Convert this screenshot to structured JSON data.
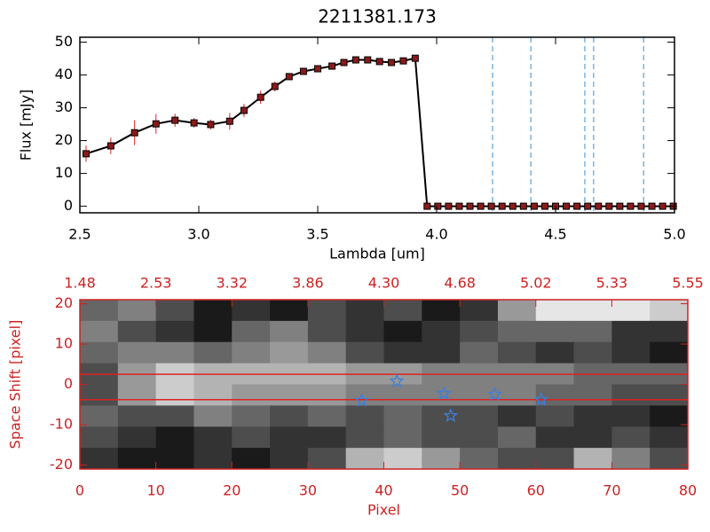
{
  "chart_data": [
    {
      "type": "line",
      "title": "2211381.173",
      "xlabel": "Lambda [um]",
      "ylabel": "Flux [mJy]",
      "color": "#000000",
      "marker_color": "#8b1a1a",
      "error_color": "#dd2222",
      "x": [
        2.526,
        2.63,
        2.73,
        2.82,
        2.9,
        2.98,
        3.05,
        3.13,
        3.19,
        3.26,
        3.32,
        3.38,
        3.44,
        3.5,
        3.56,
        3.61,
        3.66,
        3.71,
        3.76,
        3.81,
        3.86,
        3.91,
        3.96,
        4.005,
        4.05,
        4.095,
        4.14,
        4.185,
        4.23,
        4.275,
        4.32,
        4.365,
        4.41,
        4.455,
        4.5,
        4.545,
        4.59,
        4.635,
        4.68,
        4.725,
        4.77,
        4.815,
        4.86,
        4.905,
        4.95,
        4.995
      ],
      "y": [
        16,
        18.4,
        22.4,
        25.1,
        26.2,
        25.4,
        24.9,
        25.9,
        29.2,
        33.2,
        36.5,
        39.5,
        41.1,
        41.9,
        42.7,
        43.8,
        44.6,
        44.6,
        44.1,
        43.8,
        44.3,
        45.1,
        0,
        0,
        0,
        0,
        0,
        0,
        0,
        0,
        0,
        0,
        0,
        0,
        0,
        0,
        0,
        0,
        0,
        0,
        0,
        0,
        0,
        0,
        0,
        0
      ],
      "errors": [
        2.5,
        2.5,
        3.8,
        3,
        2,
        1.5,
        1.5,
        2.5,
        2,
        2,
        1.5,
        1,
        1,
        1,
        1,
        1,
        0.8,
        0.8,
        0.8,
        0.8,
        0.8,
        0.8,
        0,
        0,
        0,
        0,
        0,
        0,
        0,
        0,
        0,
        0,
        0,
        0,
        0,
        0,
        0,
        0,
        0,
        0,
        0,
        0,
        0,
        0,
        0,
        0
      ],
      "vlines": [
        4.235,
        4.396,
        4.623,
        4.66,
        4.87
      ],
      "vline_color": "#3a8fd0",
      "xlim": [
        2.5,
        5.0
      ],
      "ylim": [
        -2,
        51.5
      ],
      "xticks": [
        {
          "value": 2.5,
          "label": "2.5"
        },
        {
          "value": 3,
          "label": "3.0"
        },
        {
          "value": 3.5,
          "label": "3.5"
        },
        {
          "value": 4,
          "label": "4.0"
        },
        {
          "value": 4.5,
          "label": "4.5"
        },
        {
          "value": 5,
          "label": "5.0"
        }
      ],
      "yticks": [
        0,
        10,
        20,
        30,
        40,
        50
      ],
      "axis_color": "#000000"
    },
    {
      "type": "heatmap",
      "xlabel": "Pixel",
      "ylabel": "Space Shift [pixel]",
      "axis_color": "#cc2222",
      "xlim": [
        0,
        80
      ],
      "ylim": [
        -21,
        21
      ],
      "xticks": [
        0,
        10,
        20,
        30,
        40,
        50,
        60,
        70,
        80
      ],
      "yticks": [
        -20,
        -10,
        0,
        10,
        20
      ],
      "x2ticks": [
        {
          "value": 0,
          "label": "1.48"
        },
        {
          "value": 10,
          "label": "2.53"
        },
        {
          "value": 20,
          "label": "3.32"
        },
        {
          "value": 30,
          "label": "3.86"
        },
        {
          "value": 40,
          "label": "4.30"
        },
        {
          "value": 50,
          "label": "4.68"
        },
        {
          "value": 60,
          "label": "5.02"
        },
        {
          "value": 70,
          "label": "5.33"
        },
        {
          "value": 80,
          "label": "5.55"
        }
      ],
      "z": [
        [
          0.4,
          0.5,
          0.3,
          0.1,
          0.2,
          0.1,
          0.3,
          0.2,
          0.3,
          0.1,
          0.2,
          0.6,
          0.9,
          0.9,
          0.9,
          0.8
        ],
        [
          0.5,
          0.3,
          0.2,
          0.1,
          0.4,
          0.5,
          0.3,
          0.2,
          0.1,
          0.2,
          0.3,
          0.4,
          0.4,
          0.4,
          0.2,
          0.2
        ],
        [
          0.4,
          0.5,
          0.5,
          0.4,
          0.5,
          0.6,
          0.5,
          0.3,
          0.2,
          0.2,
          0.4,
          0.3,
          0.2,
          0.3,
          0.2,
          0.1
        ],
        [
          0.3,
          0.6,
          0.8,
          0.7,
          0.7,
          0.7,
          0.7,
          0.6,
          0.6,
          0.5,
          0.5,
          0.5,
          0.5,
          0.4,
          0.4,
          0.4
        ],
        [
          0.3,
          0.6,
          0.8,
          0.7,
          0.6,
          0.6,
          0.6,
          0.5,
          0.5,
          0.5,
          0.5,
          0.5,
          0.4,
          0.4,
          0.3,
          0.3
        ],
        [
          0.4,
          0.3,
          0.3,
          0.5,
          0.4,
          0.3,
          0.4,
          0.3,
          0.4,
          0.3,
          0.3,
          0.2,
          0.3,
          0.2,
          0.2,
          0.1
        ],
        [
          0.3,
          0.2,
          0.1,
          0.2,
          0.3,
          0.2,
          0.2,
          0.3,
          0.4,
          0.3,
          0.3,
          0.4,
          0.2,
          0.2,
          0.3,
          0.2
        ],
        [
          0.2,
          0.1,
          0.1,
          0.2,
          0.1,
          0.2,
          0.3,
          0.7,
          0.8,
          0.6,
          0.4,
          0.3,
          0.3,
          0.7,
          0.5,
          0.3
        ]
      ],
      "hlines": [
        2.5,
        -3.8
      ],
      "hline_color": "#dd2222",
      "markers": {
        "x": [
          37.1,
          41.7,
          47.9,
          48.8,
          54.6,
          60.7
        ],
        "y": [
          -4.0,
          0.8,
          -2.3,
          -7.8,
          -2.5,
          -3.8
        ],
        "color": "#3a7fe0"
      }
    }
  ]
}
